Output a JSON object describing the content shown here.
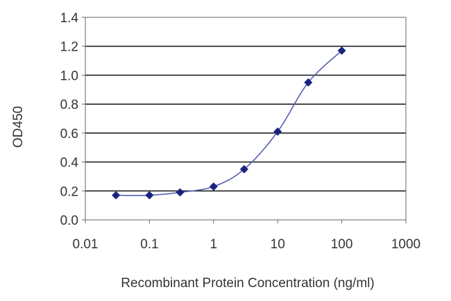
{
  "chart_data": {
    "type": "line",
    "title": "",
    "xlabel": "Recombinant Protein Concentration (ng/ml)",
    "ylabel": "OD450",
    "x_scale": "log",
    "xlim": [
      0.01,
      1000
    ],
    "ylim": [
      0.0,
      1.4
    ],
    "x_ticks": [
      "0.01",
      "0.1",
      "1",
      "10",
      "100",
      "1000"
    ],
    "y_ticks": [
      "0.0",
      "0.2",
      "0.4",
      "0.6",
      "0.8",
      "1.0",
      "1.2",
      "1.4"
    ],
    "grid": "horizontal",
    "series": [
      {
        "x": [
          0.03,
          0.1,
          0.3,
          1,
          3,
          10,
          30,
          100
        ],
        "y": [
          0.17,
          0.17,
          0.19,
          0.23,
          0.35,
          0.61,
          0.95,
          1.17
        ]
      }
    ]
  },
  "colors": {
    "series": "#1a237e",
    "curve": "#5560b0",
    "grid": "#222222",
    "axis": "#666666"
  }
}
